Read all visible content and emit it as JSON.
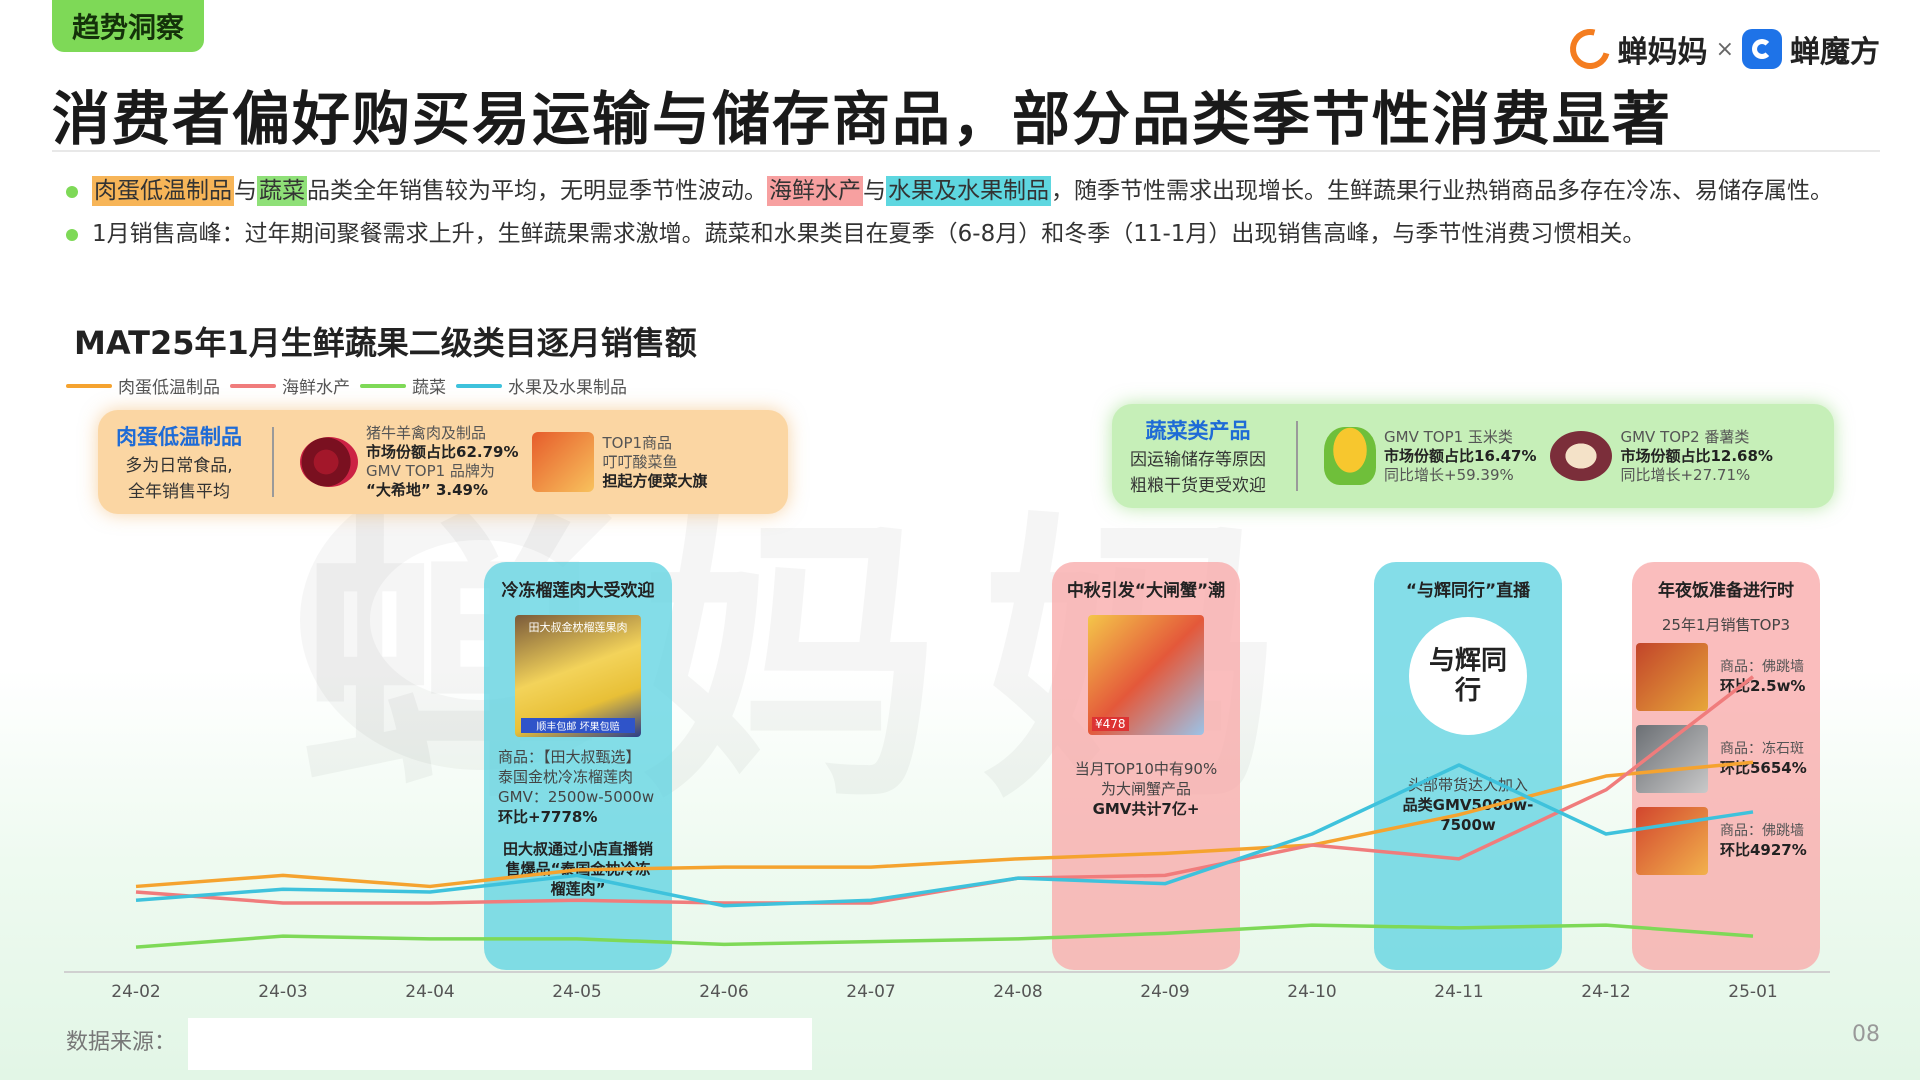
{
  "header": {
    "tag": "趋势洞察",
    "title": "消费者偏好购买易运输与储存商品，部分品类季节性消费显著",
    "brand_a": "蝉妈妈",
    "brand_x": "×",
    "brand_b": "蝉魔方"
  },
  "bullets": {
    "b1": {
      "h1": "肉蛋低温制品",
      "t1": "与",
      "h2": "蔬菜",
      "t2": "品类全年销售较为平均，无明显季节性波动。",
      "h3": "海鲜水产",
      "t3": "与",
      "h4": "水果及水果制品",
      "t4": "，随季节性需求出现增长。生鲜蔬果行业热销商品多存在冷冻、易储存属性。"
    },
    "b2": "1月销售高峰：过年期间聚餐需求上升，生鲜蔬果需求激增。蔬菜和水果类目在夏季（6-8月）和冬季（11-1月）出现销售高峰，与季节性消费习惯相关。"
  },
  "legend": [
    "肉蛋低温制品",
    "海鲜水产",
    "蔬菜",
    "水果及水果制品"
  ],
  "box_orange": {
    "title": "肉蛋低温制品",
    "sub1": "多为日常食品,",
    "sub2": "全年销售平均",
    "k1_l1": "猪牛羊禽肉及制品",
    "k1_l2": "市场份额占比62.79%",
    "k1_l3": "GMV TOP1 品牌为",
    "k1_l4": "“大希地” 3.49%",
    "k2_l1": "TOP1商品",
    "k2_l2": "叮叮酸菜鱼",
    "k2_l3": "担起方便菜大旗"
  },
  "box_green": {
    "title": "蔬菜类产品",
    "sub1": "因运输储存等原因",
    "sub2": "粗粮干货更受欢迎",
    "k1_l1": "GMV TOP1 玉米类",
    "k1_l2": "市场份额占比16.47%",
    "k1_l3": "同比增长+59.39%",
    "k2_l1": "GMV TOP2 番薯类",
    "k2_l2": "市场份额占比12.68%",
    "k2_l3": "同比增长+27.71%"
  },
  "col1": {
    "title": "冷冻榴莲肉大受欢迎",
    "img_text": "田大叔金枕榴莲果肉",
    "img_badge": "顺丰包邮 坏果包赔",
    "l1": "商品：【田大叔甄选】",
    "l2": "泰国金枕冷冻榴莲肉",
    "l3": "GMV：2500w-5000w",
    "l4": "环比+7778%",
    "b1": "田大叔通过小店直播销",
    "b2": "售爆品“泰国金枕冷冻",
    "b3": "榴莲肉”"
  },
  "col2": {
    "title": "中秋引发“大闸蟹”潮",
    "img_price": "¥478",
    "l1": "当月TOP10中有90%",
    "l2": "为大闸蟹产品",
    "l3": "GMV共计7亿+"
  },
  "col3": {
    "title": "“与辉同行”直播",
    "logo_text": "与辉同行",
    "l1": "头部带货达人加入",
    "l2": "品类GMV5000w-",
    "l3": "7500w"
  },
  "col4": {
    "title": "年夜饭准备进行时",
    "sub": "25年1月销售TOP3",
    "items": [
      {
        "label": "商品：佛跳墙",
        "value": "环比2.5w%"
      },
      {
        "label": "商品：冻石斑",
        "value": "环比5654%"
      },
      {
        "label": "商品：佛跳墙",
        "value": "环比4927%"
      }
    ]
  },
  "footer": {
    "source": "数据来源：",
    "page": "08"
  },
  "colors": {
    "meat": "#f5a32f",
    "seafood": "#f07c7c",
    "veg": "#7ed957",
    "fruit": "#3ec2dc",
    "accent": "#1e6bd6"
  },
  "chart_data": {
    "type": "line",
    "title": "MAT25年1月生鲜蔬果二级类目逐月销售额",
    "categories": [
      "24-02",
      "24-03",
      "24-04",
      "24-05",
      "24-06",
      "24-07",
      "24-08",
      "24-09",
      "24-10",
      "24-11",
      "24-12",
      "25-01"
    ],
    "ylim": [
      0,
      100
    ],
    "grid": false,
    "legend_position": "top-left",
    "series": [
      {
        "name": "肉蛋低温制品",
        "color": "#f5a32f",
        "values": [
          15.5,
          17.5,
          15.5,
          18.5,
          19,
          19,
          20.5,
          21.5,
          23,
          28.5,
          35.5,
          38
        ]
      },
      {
        "name": "海鲜水产",
        "color": "#f07c7c",
        "values": [
          14.5,
          12.5,
          12.5,
          13,
          12.5,
          12.5,
          17,
          17.5,
          23,
          20.5,
          33,
          53.5
        ]
      },
      {
        "name": "蔬菜",
        "color": "#7ed957",
        "values": [
          4.5,
          6.5,
          6,
          6,
          5,
          5.5,
          6,
          7,
          8.5,
          8,
          8.5,
          6.5
        ]
      },
      {
        "name": "水果及水果制品",
        "color": "#3ec2dc",
        "values": [
          13,
          15,
          14.5,
          17.5,
          12,
          13,
          17,
          16,
          25,
          37.5,
          25,
          29
        ]
      }
    ]
  }
}
